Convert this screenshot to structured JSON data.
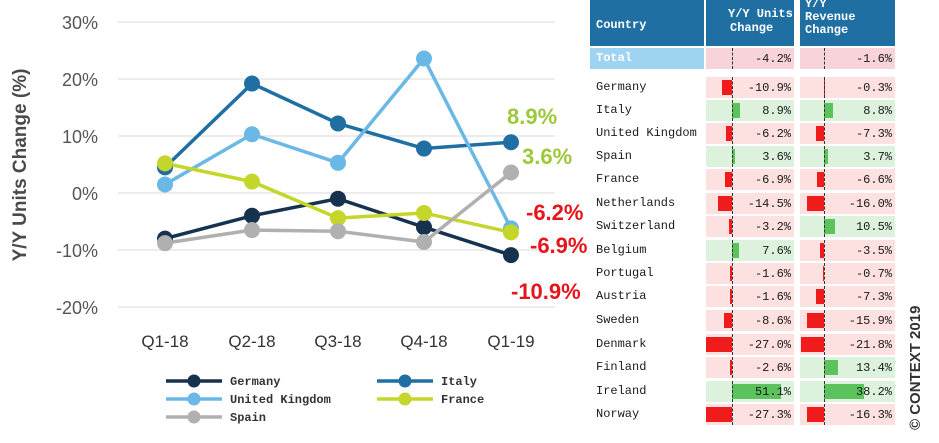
{
  "chart_data": {
    "type": "line",
    "ylabel": "Y/Y Units Change (%)",
    "categories": [
      "Q1-18",
      "Q2-18",
      "Q3-18",
      "Q4-18",
      "Q1-19"
    ],
    "ylim": [
      -20,
      30
    ],
    "yticks": [
      "30%",
      "20%",
      "10%",
      "0%",
      "-10%",
      "-20%"
    ],
    "series": [
      {
        "name": "Germany",
        "color": "#17324F",
        "values": [
          -8,
          -4,
          -1,
          -6,
          -10.9
        ]
      },
      {
        "name": "Italy",
        "color": "#1F6FA3",
        "values": [
          4.5,
          19.2,
          12.2,
          7.8,
          8.9
        ]
      },
      {
        "name": "United Kingdom",
        "color": "#6AB8E6",
        "values": [
          1.5,
          10.3,
          5.3,
          23.6,
          -6.2
        ]
      },
      {
        "name": "France",
        "color": "#C5D62A",
        "values": [
          5.2,
          2,
          -4.4,
          -3.5,
          -6.9
        ]
      },
      {
        "name": "Spain",
        "color": "#B0B0B0",
        "values": [
          -8.8,
          -6.5,
          -6.7,
          -8.6,
          3.6
        ]
      }
    ],
    "annotations": [
      {
        "text": "8.9%",
        "color": "#9CC83A"
      },
      {
        "text": "3.6%",
        "color": "#9CC83A"
      },
      {
        "text": "-6.2%",
        "color": "#E8141B"
      },
      {
        "text": "-6.9%",
        "color": "#E8141B"
      },
      {
        "text": "-10.9%",
        "color": "#E8141B"
      }
    ],
    "grid": true,
    "legend": "bottom"
  },
  "table": {
    "headers": {
      "country": "Country",
      "units_line1": "Y/Y Units",
      "units_line2": "Change",
      "rev_line1": "Y/Y",
      "rev_line2": "Revenue",
      "rev_line3": "Change"
    },
    "rows": [
      {
        "country": "Total",
        "units": -4.2,
        "units_label": "-4.2%",
        "rev": -1.6,
        "rev_label": "-1.6%"
      },
      {
        "country": "Germany",
        "units": -10.9,
        "units_label": "-10.9%",
        "rev": -0.3,
        "rev_label": "-0.3%"
      },
      {
        "country": "Italy",
        "units": 8.9,
        "units_label": "8.9%",
        "rev": 8.8,
        "rev_label": "8.8%"
      },
      {
        "country": "United Kingdom",
        "units": -6.2,
        "units_label": "-6.2%",
        "rev": -7.3,
        "rev_label": "-7.3%"
      },
      {
        "country": "Spain",
        "units": 3.6,
        "units_label": "3.6%",
        "rev": 3.7,
        "rev_label": "3.7%"
      },
      {
        "country": "France",
        "units": -6.9,
        "units_label": "-6.9%",
        "rev": -6.6,
        "rev_label": "-6.6%"
      },
      {
        "country": "Netherlands",
        "units": -14.5,
        "units_label": "-14.5%",
        "rev": -16.0,
        "rev_label": "-16.0%"
      },
      {
        "country": "Switzerland",
        "units": -3.2,
        "units_label": "-3.2%",
        "rev": 10.5,
        "rev_label": "10.5%"
      },
      {
        "country": "Belgium",
        "units": 7.6,
        "units_label": "7.6%",
        "rev": -3.5,
        "rev_label": "-3.5%"
      },
      {
        "country": "Portugal",
        "units": -1.6,
        "units_label": "-1.6%",
        "rev": -0.7,
        "rev_label": "-0.7%"
      },
      {
        "country": "Austria",
        "units": -1.6,
        "units_label": "-1.6%",
        "rev": -7.3,
        "rev_label": "-7.3%"
      },
      {
        "country": "Sweden",
        "units": -8.6,
        "units_label": "-8.6%",
        "rev": -15.9,
        "rev_label": "-15.9%"
      },
      {
        "country": "Denmark",
        "units": -27.0,
        "units_label": "-27.0%",
        "rev": -21.8,
        "rev_label": "-21.8%"
      },
      {
        "country": "Finland",
        "units": -2.6,
        "units_label": "-2.6%",
        "rev": 13.4,
        "rev_label": "13.4%"
      },
      {
        "country": "Ireland",
        "units": 51.1,
        "units_label": "51.1%",
        "rev": 38.2,
        "rev_label": "38.2%"
      },
      {
        "country": "Norway",
        "units": -27.3,
        "units_label": "-27.3%",
        "rev": -16.3,
        "rev_label": "-16.3%"
      }
    ],
    "colors": {
      "header_bg": "#1F6FA3",
      "total_bg": "#9FD3F2",
      "neg_cell": "#FDE0E0",
      "pos_cell": "#DDF2DD",
      "neg_bar": "#F01C1C",
      "pos_bar": "#5CC25C"
    }
  },
  "copyright": "© CONTEXT 2019"
}
